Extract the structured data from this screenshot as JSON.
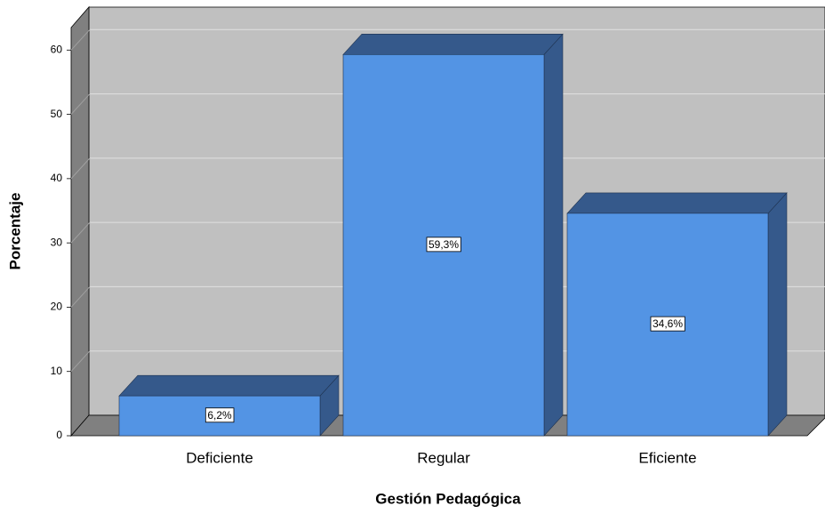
{
  "chart_data": {
    "type": "bar",
    "x_label": "Gestión Pedagógica",
    "y_label": "Porcentaje",
    "categories": [
      "Deficiente",
      "Regular",
      "Eficiente"
    ],
    "values": [
      6.2,
      59.3,
      34.6
    ],
    "value_labels": [
      "6,2%",
      "59,3%",
      "34,6%"
    ],
    "color": "#5394e4",
    "ylim": [
      0,
      63.5
    ],
    "yticks": [
      0,
      10,
      20,
      30,
      40,
      50,
      60
    ],
    "grid": true
  }
}
